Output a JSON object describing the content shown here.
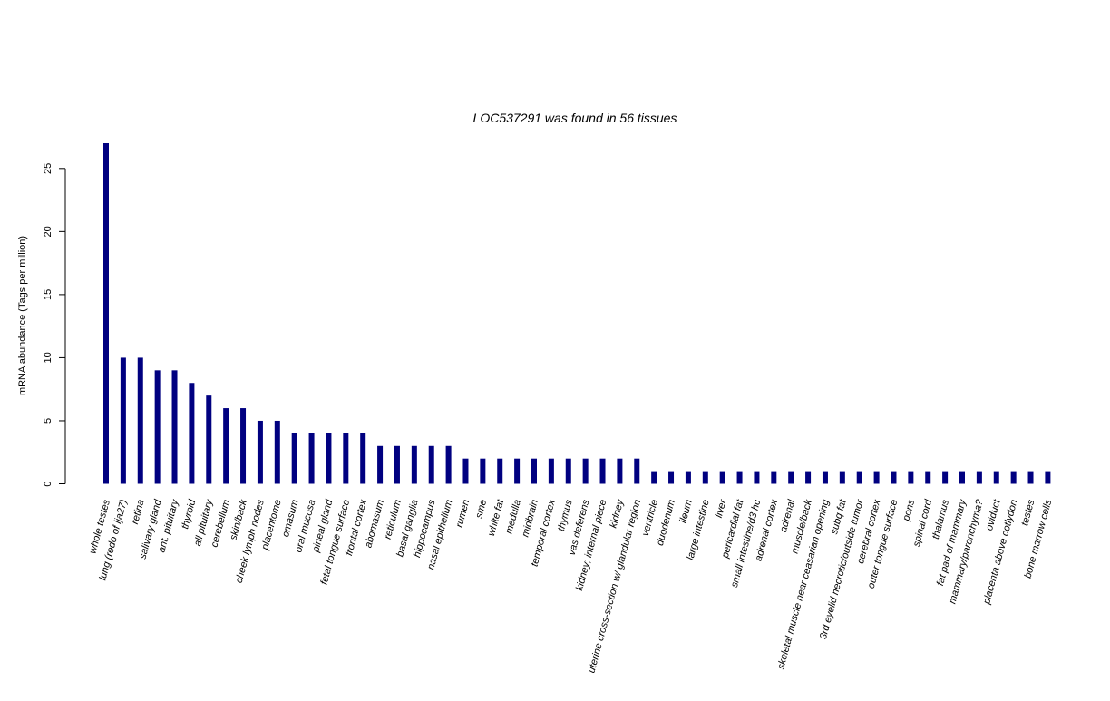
{
  "chart_data": {
    "type": "bar",
    "title": "LOC537291  was found in  56  tissues",
    "xlabel": "",
    "ylabel": "mRNA abundance (Tags per million)",
    "ylim": [
      0,
      27
    ],
    "yticks": [
      0,
      5,
      10,
      15,
      20,
      25
    ],
    "bar_color": "#000080",
    "grid": false,
    "categories": [
      "whole testes",
      "lung (redo of lja27)",
      "retina",
      "salivary gland",
      "ant. pituitary",
      "thyroid",
      "all pituitary",
      "cerebellum",
      "skin/back",
      "cheek lymph nodes",
      "placentome",
      "omasum",
      "oral mucosa",
      "pineal gland",
      "fetal tongue surface",
      "frontal cortex",
      "abomasum",
      "reticulum",
      "basal ganglia",
      "hippocampus",
      "nasal epithelium",
      "rumen",
      "sme",
      "white fat",
      "medulla",
      "midbrain",
      "temporal cortex",
      "thymus",
      "vas deferens",
      "kidney; internal piece",
      "kidney",
      "uterine cross-section w/ glandular region",
      "ventricle",
      "duodenum",
      "ileum",
      "large intestine",
      "liver",
      "pericardial fat",
      "small intestine/d3 hc",
      "adrenal cortex",
      "adrenal",
      "muscle/back",
      "skeletal muscle near ceasarian opening",
      "subq fat",
      "3rd eyelid necrotic/outside tumor",
      "cerebral cortex",
      "outer tongue surface",
      "pons",
      "spinal cord",
      "thalamus",
      "fat pad of mammary",
      "mammary/parenchyma?",
      "oviduct",
      "placenta above cotlydon",
      "testes",
      "bone marrow cells"
    ],
    "values": [
      27,
      10,
      10,
      9,
      9,
      8,
      7,
      6,
      6,
      5,
      5,
      4,
      4,
      4,
      4,
      4,
      3,
      3,
      3,
      3,
      3,
      2,
      2,
      2,
      2,
      2,
      2,
      2,
      2,
      2,
      2,
      2,
      1,
      1,
      1,
      1,
      1,
      1,
      1,
      1,
      1,
      1,
      1,
      1,
      1,
      1,
      1,
      1,
      1,
      1,
      1,
      1,
      1,
      1,
      1,
      1
    ]
  }
}
